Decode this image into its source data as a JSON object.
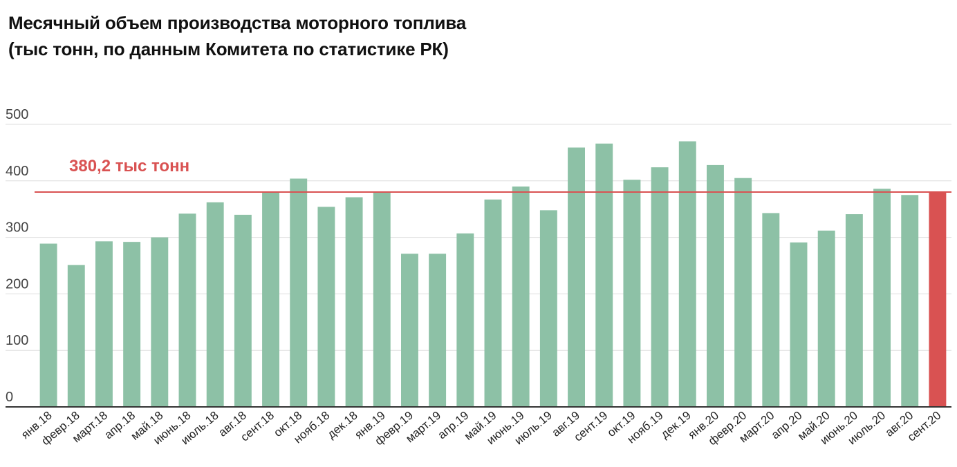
{
  "chart_data": {
    "type": "bar",
    "title": "Месячный объем производства моторного топлива",
    "subtitle": "(тыс тонн, по данным Комитета по статистике РК)",
    "xlabel": "",
    "ylabel": "",
    "ylim": [
      0,
      500
    ],
    "yticks": [
      0,
      100,
      200,
      300,
      400,
      500
    ],
    "grid": true,
    "categories": [
      "янв.18",
      "февр.18",
      "март.18",
      "апр.18",
      "май.18",
      "июнь.18",
      "июль.18",
      "авг.18",
      "сент.18",
      "окт.18",
      "нояб.18",
      "дек.18",
      "янв.19",
      "февр.19",
      "март.19",
      "апр.19",
      "май.19",
      "июнь.19",
      "июль.19",
      "авг.19",
      "сент.19",
      "окт.19",
      "нояб.19",
      "дек.19",
      "янв.20",
      "февр.20",
      "март.20",
      "апр.20",
      "май.20",
      "июнь.20",
      "июль.20",
      "авг.20",
      "сент.20"
    ],
    "values": [
      289,
      251,
      293,
      292,
      300,
      342,
      362,
      340,
      380,
      404,
      354,
      371,
      381,
      271,
      271,
      307,
      367,
      390,
      348,
      459,
      466,
      402,
      424,
      470,
      428,
      405,
      343,
      291,
      312,
      341,
      386,
      375,
      380.2
    ],
    "highlight_index": 32,
    "reference_line": {
      "value": 380.2,
      "label": "380,2 тыс тонн"
    }
  },
  "colors": {
    "bar": "#8dc1a6",
    "highlight": "#d95252",
    "reference": "#d95252",
    "grid": "#dddddd",
    "axis": "#333333"
  }
}
